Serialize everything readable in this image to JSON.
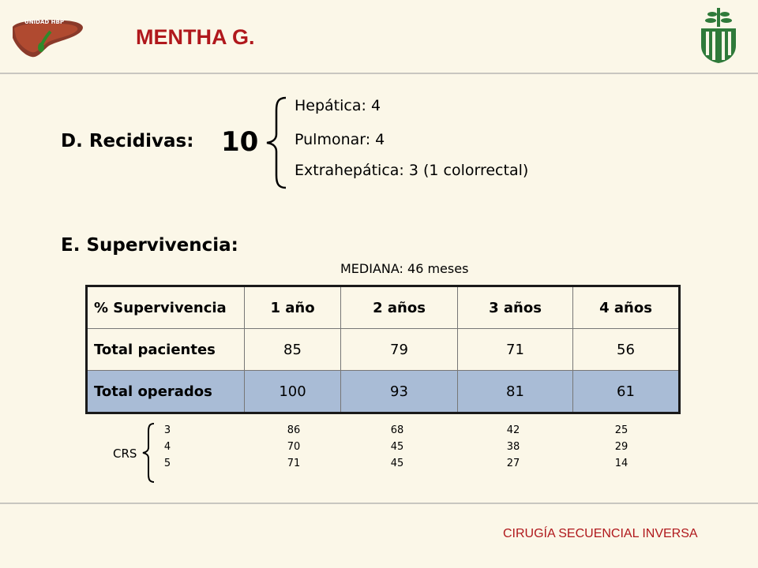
{
  "header": {
    "logo_text": "UNIDAD HBP",
    "title": "MENTHA G."
  },
  "recidivas": {
    "heading": "D. Recidivas:",
    "total": "10",
    "items": [
      "Hepática: 4",
      "Pulmonar: 4",
      "Extrahepática: 3 (1 colorrectal)"
    ]
  },
  "supervivencia": {
    "heading": "E. Supervivencia:",
    "median": "MEDIANA: 46 meses",
    "table": {
      "headers": [
        "% Supervivencia",
        "1 año",
        "2 años",
        "3 años",
        "4 años"
      ],
      "rows": [
        {
          "label": "Total pacientes",
          "values": [
            "85",
            "79",
            "71",
            "56"
          ]
        },
        {
          "label": "Total operados",
          "values": [
            "100",
            "93",
            "81",
            "61"
          ]
        }
      ]
    }
  },
  "crs": {
    "label": "CRS",
    "columns": [
      [
        "3",
        "4",
        "5"
      ],
      [
        "86",
        "70",
        "71"
      ],
      [
        "68",
        "45",
        "45"
      ],
      [
        "42",
        "38",
        "27"
      ],
      [
        "25",
        "29",
        "14"
      ]
    ]
  },
  "footer": "CIRUGÍA SECUENCIAL INVERSA",
  "colors": {
    "background": "#fbf7e8",
    "title_red": "#b0181c",
    "logo_green": "#2f7a3a",
    "row_highlight": "#a9bcd6"
  }
}
